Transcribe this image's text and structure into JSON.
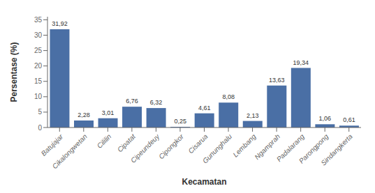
{
  "chart_data": {
    "type": "bar",
    "categories": [
      "Batujajar",
      "Cikalongwetan",
      "Cililin",
      "Cipatat",
      "Cipeundeuy",
      "Cipongkor",
      "Cisarua",
      "Gununghalu",
      "Lembang",
      "Ngamprah",
      "Padalarang",
      "Parongpong",
      "Sindangkerta"
    ],
    "values": [
      31.92,
      2.28,
      3.01,
      6.76,
      6.32,
      0.25,
      4.61,
      8.08,
      2.13,
      13.63,
      19.34,
      1.06,
      0.61
    ],
    "value_labels": [
      "31,92",
      "2,28",
      "3,01",
      "6,76",
      "6,32",
      "0,25",
      "4,61",
      "8,08",
      "2,13",
      "13,63",
      "19,34",
      "1,06",
      "0,61"
    ],
    "color": "#4a6fa5",
    "xlabel": "Kecamatan",
    "ylabel": "Persentase (%)",
    "ylim": [
      0,
      36
    ],
    "yticks": [
      0,
      5,
      10,
      15,
      20,
      25,
      30,
      35
    ],
    "grid": false
  }
}
